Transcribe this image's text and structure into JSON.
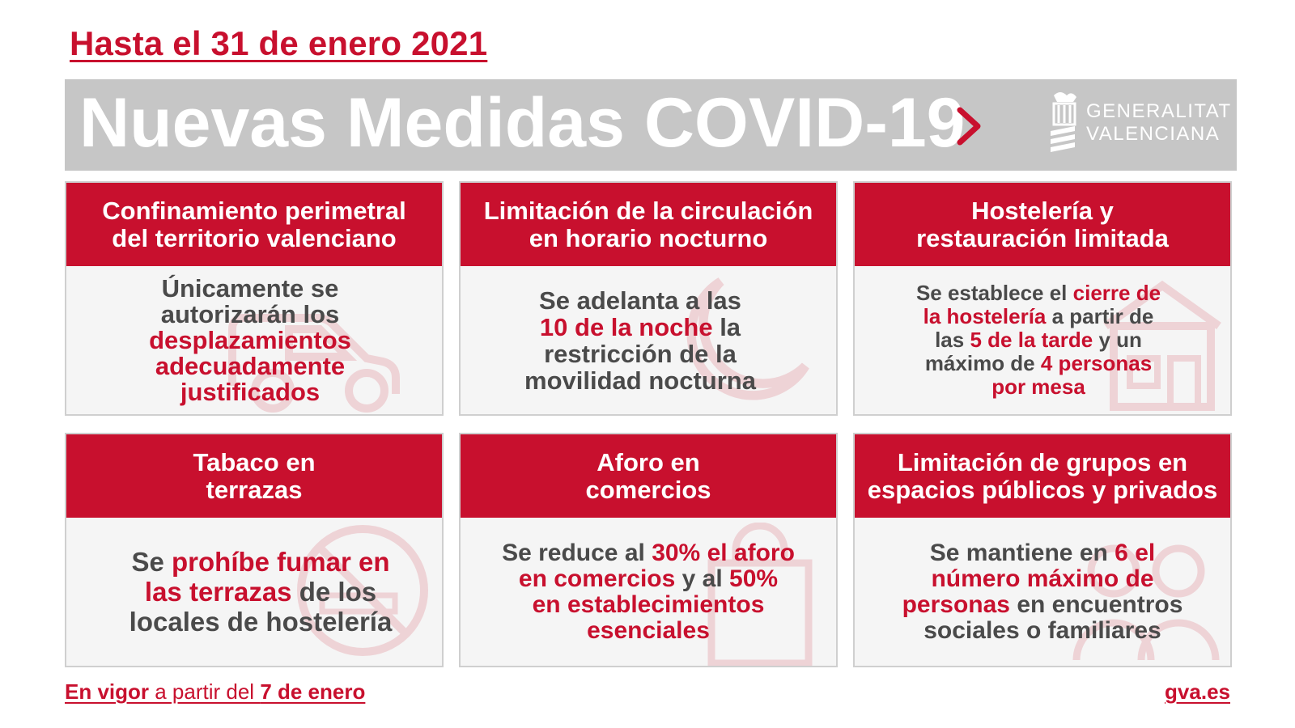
{
  "header": {
    "date_text": "Hasta el 31 de enero 2021",
    "title": "Nuevas Medidas COVID-19",
    "org_line1": "GENERALITAT",
    "org_line2": "VALENCIANA",
    "arrow_icon": "chevron-right-icon",
    "colors": {
      "accent": "#c8102e",
      "banner": "#c6c6c6",
      "text_gray": "#4a4a4a"
    }
  },
  "cards": [
    {
      "title_l1": "Confinamiento perimetral",
      "title_l2": "del territorio valenciano",
      "icon": "car-icon",
      "body": [
        "Únicamente se",
        "autorizarán los",
        "desplazamientos",
        "adecuadamente",
        "justificados"
      ]
    },
    {
      "title_l1": "Limitación de la circulación",
      "title_l2": "en horario nocturno",
      "icon": "moon-icon",
      "body": [
        "Se adelanta a las",
        "10 de la noche",
        "la",
        "restricción de la",
        "movilidad nocturna"
      ]
    },
    {
      "title_l1": "Hostelería y",
      "title_l2": "restauración limitada",
      "icon": "restaurant-icon",
      "body": [
        "Se establece el",
        "cierre de",
        "la hostelería",
        "a partir de",
        "las",
        "5 de la tarde",
        "y un",
        "máximo de",
        "4 personas",
        "por mesa"
      ]
    },
    {
      "title_l1": "Tabaco en",
      "title_l2": "terrazas",
      "icon": "no-smoking-icon",
      "body": [
        "Se",
        "prohíbe fumar en",
        "las terrazas",
        "de los",
        "locales de hostelería"
      ]
    },
    {
      "title_l1": "Aforo en",
      "title_l2": "comercios",
      "icon": "shopping-bag-icon",
      "body": [
        "Se reduce al",
        "30% el aforo",
        "en comercios",
        "y al",
        "50%",
        "en establecimientos",
        "esenciales"
      ]
    },
    {
      "title_l1": "Limitación de grupos en",
      "title_l2": "espacios públicos y privados",
      "icon": "people-group-icon",
      "body": [
        "Se mantiene en",
        "6 el",
        "número máximo de",
        "personas",
        "en encuentros",
        "sociales o familiares"
      ]
    }
  ],
  "footer": {
    "left_part1": "En vigor",
    "left_part2": " a partir del ",
    "left_part3": "7 de enero",
    "right": "gva.es"
  }
}
